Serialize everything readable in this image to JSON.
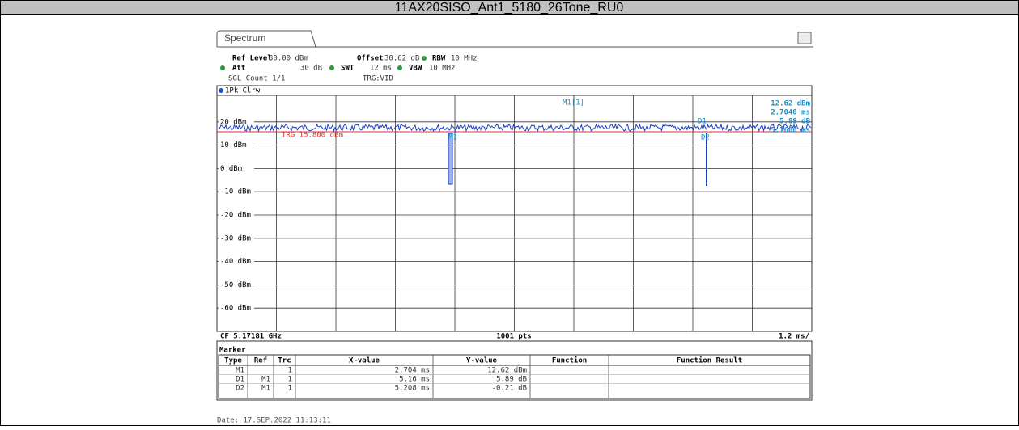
{
  "title": "11AX20SISO_Ant1_5180_26Tone_RU0",
  "tab": "Spectrum",
  "settings": [
    {
      "label": "Ref Level",
      "value": "30.00 dBm"
    },
    {
      "label": "Offset",
      "value": "30.62 dB"
    },
    {
      "label": "RBW",
      "value": "10 MHz"
    },
    {
      "label": "Att",
      "value": "30 dB"
    },
    {
      "label": "SWT",
      "value": "12 ms"
    },
    {
      "label": "VBW",
      "value": "10 MHz"
    }
  ],
  "sgl_count": "SGL Count 1/1",
  "trg": "TRG:VID",
  "trace": "1Pk Clrw",
  "level_labels": [
    "20 dBm",
    "10 dBm",
    "0 dBm",
    "-10 dBm",
    "-20 dBm",
    "-30 dBm",
    "-40 dBm",
    "-50 dBm",
    "-60 dBm"
  ],
  "trigger_line": "TRG 15.800 dBm",
  "chart_markers": [
    "M1",
    "D1",
    "D2"
  ],
  "marker_readout": {
    "name": "M1[1]",
    "values": [
      "12.62 dBm",
      "2.7040 ms",
      "5.89 dB",
      "5.1600 ms"
    ]
  },
  "footer": {
    "cf": "CF 5.17181 GHz",
    "pts": "1001 pts",
    "span": "1.2 ms/"
  },
  "marker_table": {
    "title": "Marker",
    "headers": [
      "Type",
      "Ref",
      "Trc",
      "X-value",
      "Y-value",
      "Function",
      "Function Result"
    ],
    "rows": [
      [
        "M1",
        "",
        "1",
        "2.704 ms",
        "12.62 dBm",
        "",
        ""
      ],
      [
        "D1",
        "M1",
        "1",
        "5.16 ms",
        "5.89 dB",
        "",
        ""
      ],
      [
        "D2",
        "M1",
        "1",
        "5.208 ms",
        "-0.21 dB",
        "",
        ""
      ]
    ]
  },
  "date": "Date: 17.SEP.2022  11:13:11"
}
